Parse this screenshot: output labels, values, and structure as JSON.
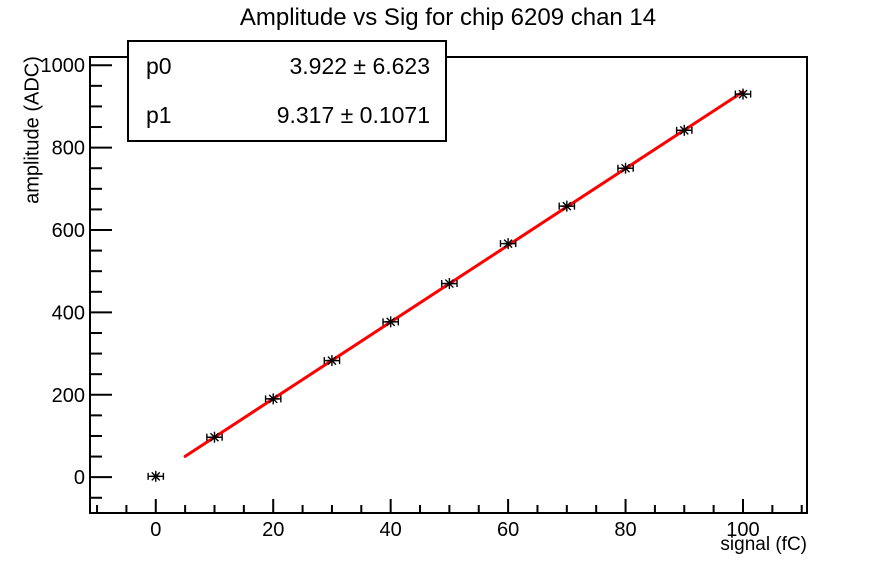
{
  "chart_data": {
    "type": "scatter",
    "title": "Amplitude vs Sig for chip 6209 chan 14",
    "xlabel": "signal (fC)",
    "ylabel": "amplitude (ADC)",
    "x": [
      0,
      10,
      20,
      30,
      40,
      50,
      60,
      70,
      80,
      90,
      100
    ],
    "y": [
      2,
      97,
      190,
      283,
      377,
      470,
      567,
      658,
      750,
      842,
      930
    ],
    "x_err": 1.3,
    "xlim": [
      -11.2,
      110.9
    ],
    "ylim": [
      -87,
      1020
    ],
    "x_major_ticks": [
      0,
      20,
      40,
      60,
      80,
      100
    ],
    "x_minor_step": 5,
    "y_major_ticks": [
      0,
      200,
      400,
      600,
      800,
      1000
    ],
    "y_minor_step": 50,
    "grid": false,
    "legend_position": "none",
    "marker": "star-with-x-error-bars",
    "marker_color": "#000000",
    "fit": {
      "type": "linear",
      "p0": 3.922,
      "p1": 9.317,
      "range": [
        5,
        100
      ],
      "color": "#ff0000",
      "width": 3
    }
  },
  "stats_box": {
    "rows": [
      {
        "label": "p0",
        "value": "3.922 ± 6.623"
      },
      {
        "label": "p1",
        "value": "9.317 ± 0.1071"
      }
    ]
  }
}
